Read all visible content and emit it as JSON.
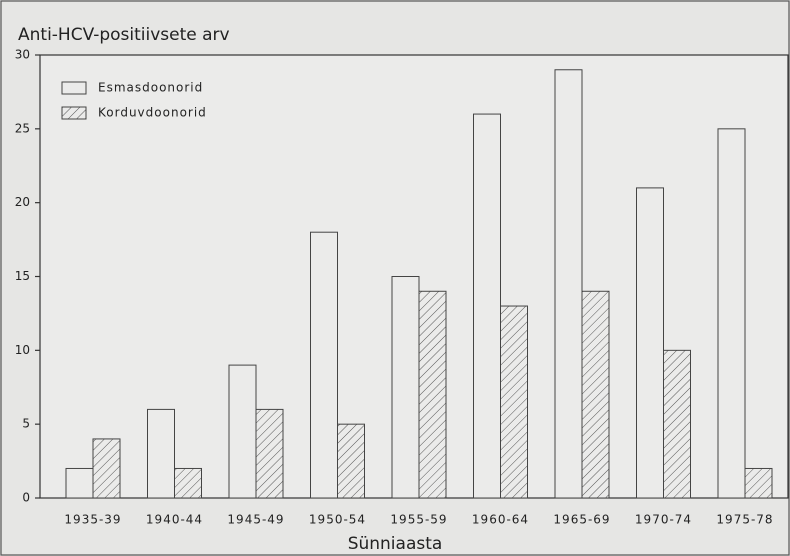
{
  "chart_data": {
    "type": "bar",
    "title": "Anti-HCV-positiivsete arv",
    "x_label": "Sünniaasta",
    "categories": [
      "1935-39",
      "1940-44",
      "1945-49",
      "1950-54",
      "1955-59",
      "1960-64",
      "1965-69",
      "1970-74",
      "1975-78"
    ],
    "series": [
      {
        "name": "Esmasdoonorid",
        "color": "#ebebea",
        "hatch": false,
        "values": [
          2,
          6,
          9,
          18,
          15,
          26,
          29,
          21,
          25
        ]
      },
      {
        "name": "Korduvdoonorid",
        "color": "#ebebea",
        "hatch": true,
        "values": [
          4,
          2,
          6,
          5,
          14,
          13,
          14,
          10,
          2
        ]
      }
    ],
    "ylim": [
      0,
      30
    ],
    "yticks": [
      0,
      5,
      10,
      15,
      20,
      25,
      30
    ],
    "grid": false,
    "legend": "upper left"
  }
}
